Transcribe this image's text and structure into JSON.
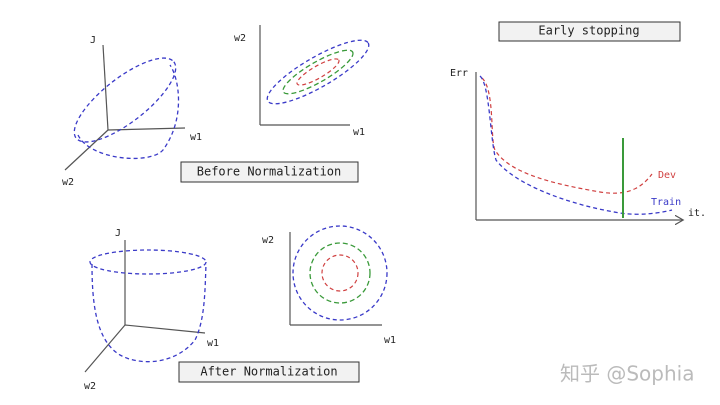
{
  "before": {
    "surface": {
      "axis_labels": [
        "J",
        "w1",
        "w2"
      ]
    },
    "contour": {
      "axis_labels": [
        "w2",
        "w1"
      ]
    },
    "caption": "Before Normalization"
  },
  "after": {
    "surface": {
      "axis_labels": [
        "J",
        "w1",
        "w2"
      ]
    },
    "contour": {
      "axis_labels": [
        "w2",
        "w1"
      ]
    },
    "caption": "After Normalization"
  },
  "early_stopping": {
    "title": "Early stopping",
    "y_label": "Err",
    "x_label": "it.",
    "curves": [
      "Dev",
      "Train"
    ]
  },
  "watermark": "知乎 @Sophia"
}
